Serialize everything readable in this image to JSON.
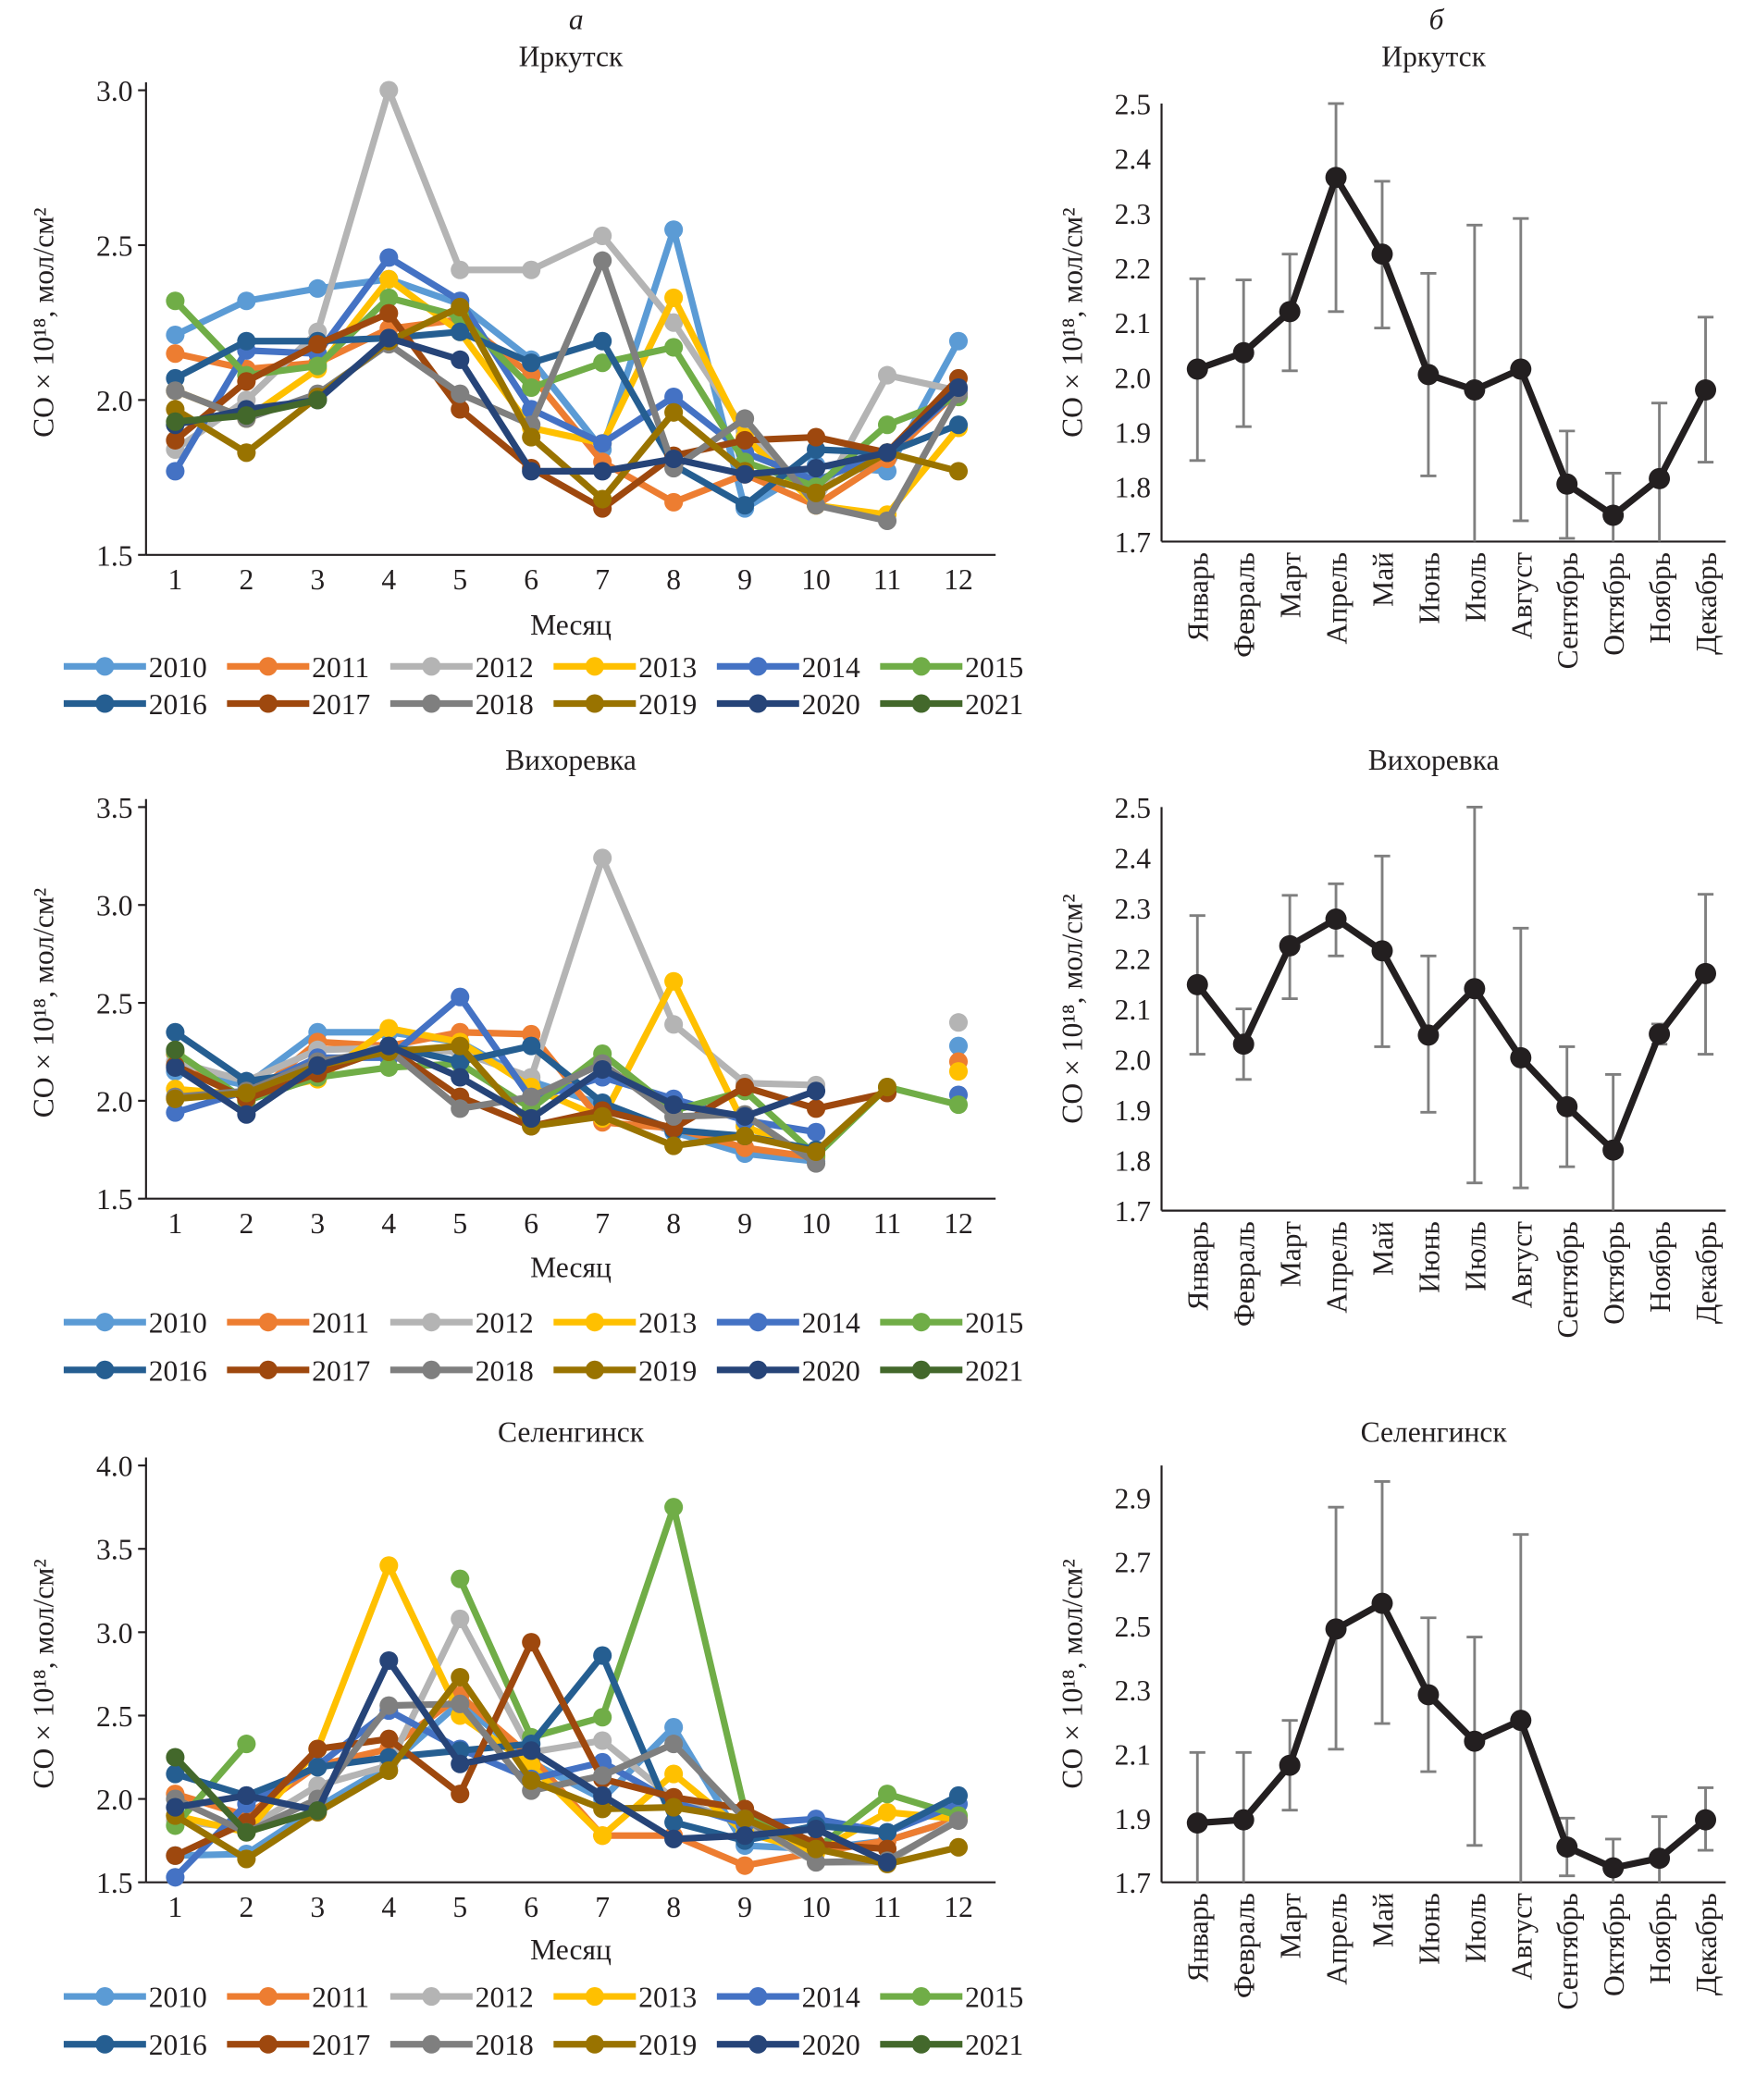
{
  "panel_labels": {
    "a": "а",
    "b": "б"
  },
  "legend_years": [
    "2010",
    "2011",
    "2012",
    "2013",
    "2014",
    "2015",
    "2016",
    "2017",
    "2018",
    "2019",
    "2020",
    "2021"
  ],
  "legend_colors": [
    "#5B9BD5",
    "#ED7D31",
    "#B4B4B4",
    "#FFC000",
    "#4472C4",
    "#70AD47",
    "#255E91",
    "#9E480E",
    "#7F7F7F",
    "#997300",
    "#264478",
    "#43682B"
  ],
  "chart_data": [
    {
      "type": "line",
      "panel": "а",
      "title": "Иркутск",
      "xlabel": "Месяц",
      "ylabel": "CO × 10^18, мол/см^2",
      "ylim": [
        1.5,
        3.0
      ],
      "yticks": [
        "1.5",
        "2.0",
        "2.5",
        "3.0"
      ],
      "x": [
        1,
        2,
        3,
        4,
        5,
        6,
        7,
        8,
        9,
        10,
        11,
        12
      ],
      "legend": "bottom",
      "series": [
        {
          "name": "2010",
          "values": [
            2.21,
            2.32,
            2.36,
            2.39,
            2.31,
            2.13,
            1.84,
            2.55,
            1.65,
            1.79,
            1.77,
            2.19
          ]
        },
        {
          "name": "2011",
          "values": [
            2.15,
            2.1,
            2.12,
            2.23,
            2.26,
            2.08,
            1.8,
            1.67,
            1.76,
            1.66,
            1.81,
            2.03
          ]
        },
        {
          "name": "2012",
          "values": [
            1.84,
            2.0,
            2.22,
            3.0,
            2.42,
            2.42,
            2.53,
            2.25,
            1.9,
            1.66,
            2.08,
            2.03
          ]
        },
        {
          "name": "2013",
          "values": [
            2.03,
            1.94,
            2.1,
            2.39,
            2.22,
            1.91,
            1.86,
            2.33,
            1.88,
            1.66,
            1.63,
            1.91
          ]
        },
        {
          "name": "2014",
          "values": [
            1.77,
            2.16,
            2.15,
            2.46,
            2.32,
            1.97,
            1.86,
            2.01,
            1.83,
            1.74,
            1.83,
            2.03
          ]
        },
        {
          "name": "2015",
          "values": [
            2.32,
            2.08,
            2.11,
            2.33,
            2.27,
            2.04,
            2.12,
            2.17,
            1.8,
            1.72,
            1.92,
            2.01
          ]
        },
        {
          "name": "2016",
          "values": [
            2.07,
            2.19,
            2.19,
            2.2,
            2.22,
            2.12,
            2.19,
            1.79,
            1.66,
            1.84,
            1.83,
            1.92
          ]
        },
        {
          "name": "2017",
          "values": [
            1.87,
            2.06,
            2.18,
            2.28,
            1.97,
            1.78,
            1.65,
            1.82,
            1.87,
            1.88,
            1.83,
            2.07
          ]
        },
        {
          "name": "2018",
          "values": [
            2.03,
            1.94,
            2.02,
            2.18,
            2.02,
            1.92,
            2.45,
            1.78,
            1.94,
            1.66,
            1.61,
            2.02
          ]
        },
        {
          "name": "2019",
          "values": [
            1.97,
            1.83,
            2.01,
            2.19,
            2.3,
            1.88,
            1.68,
            1.96,
            1.77,
            1.7,
            1.83,
            1.77
          ]
        },
        {
          "name": "2020",
          "values": [
            1.92,
            1.97,
            2.0,
            2.2,
            2.13,
            1.77,
            1.77,
            1.81,
            1.76,
            1.78,
            1.83,
            2.04
          ]
        },
        {
          "name": "2021",
          "values": [
            1.93,
            1.95,
            2.0,
            null,
            null,
            null,
            null,
            null,
            null,
            null,
            null,
            null
          ]
        }
      ]
    },
    {
      "type": "line",
      "panel": "б",
      "title": "Иркутск",
      "ylabel": "CO × 10^18, мол/см^2",
      "ylim": [
        1.7,
        2.5
      ],
      "yticks": [
        "1.7",
        "1.8",
        "1.9",
        "2.0",
        "2.1",
        "2.2",
        "2.3",
        "2.4",
        "2.5"
      ],
      "categories": [
        "Январь",
        "Февраль",
        "Март",
        "Апрель",
        "Май",
        "Июнь",
        "Июль",
        "Август",
        "Сентябрь",
        "Октябрь",
        "Ноябрь",
        "Декабрь"
      ],
      "values": [
        2.015,
        2.045,
        2.12,
        2.365,
        2.225,
        2.005,
        1.977,
        2.015,
        1.805,
        1.748,
        1.815,
        1.977
      ],
      "err_low": [
        1.848,
        1.91,
        2.012,
        2.12,
        2.09,
        1.82,
        1.7,
        1.738,
        1.706,
        1.7,
        1.7,
        1.845
      ],
      "err_high": [
        2.18,
        2.178,
        2.225,
        2.5,
        2.358,
        2.19,
        2.278,
        2.29,
        1.902,
        1.825,
        1.953,
        2.11
      ]
    },
    {
      "type": "line",
      "panel": "а",
      "title": "Вихоревка",
      "xlabel": "Месяц",
      "ylabel": "CO × 10^18, мол/см^2",
      "ylim": [
        1.5,
        3.5
      ],
      "yticks": [
        "1.5",
        "2.0",
        "2.5",
        "3.0",
        "3.5"
      ],
      "x": [
        1,
        2,
        3,
        4,
        5,
        6,
        7,
        8,
        9,
        10,
        11,
        12
      ],
      "legend": "bottom",
      "series": [
        {
          "name": "2010",
          "values": [
            2.15,
            2.08,
            2.35,
            2.35,
            2.3,
            2.1,
            1.98,
            1.84,
            1.73,
            1.69,
            null,
            2.28
          ]
        },
        {
          "name": "2011",
          "values": [
            2.24,
            2.0,
            2.3,
            2.28,
            2.35,
            2.34,
            1.89,
            1.86,
            1.76,
            1.71,
            null,
            2.2
          ]
        },
        {
          "name": "2012",
          "values": [
            2.2,
            2.1,
            2.26,
            2.27,
            2.25,
            2.12,
            3.24,
            2.39,
            2.09,
            2.08,
            null,
            2.4
          ]
        },
        {
          "name": "2013",
          "values": [
            2.06,
            2.03,
            2.11,
            2.37,
            2.3,
            2.07,
            1.91,
            2.61,
            1.87,
            1.72,
            null,
            2.15
          ]
        },
        {
          "name": "2014",
          "values": [
            1.94,
            2.05,
            2.22,
            2.22,
            2.53,
            2.01,
            2.12,
            2.01,
            1.9,
            1.84,
            null,
            2.03
          ]
        },
        {
          "name": "2015",
          "values": [
            2.25,
            2.0,
            2.12,
            2.17,
            2.19,
            1.96,
            2.24,
            1.95,
            2.05,
            1.72,
            2.07,
            1.98
          ]
        },
        {
          "name": "2016",
          "values": [
            2.35,
            2.1,
            2.15,
            2.28,
            2.2,
            2.28,
            1.99,
            1.85,
            1.82,
            1.75,
            null,
            null
          ]
        },
        {
          "name": "2017",
          "values": [
            2.18,
            2.01,
            2.14,
            2.27,
            2.02,
            1.87,
            1.95,
            1.86,
            2.07,
            1.96,
            2.04,
            null
          ]
        },
        {
          "name": "2018",
          "values": [
            2.02,
            2.05,
            2.2,
            2.26,
            1.96,
            2.02,
            2.19,
            1.92,
            1.93,
            1.68,
            null,
            null
          ]
        },
        {
          "name": "2019",
          "values": [
            2.01,
            2.04,
            2.18,
            2.25,
            2.28,
            1.87,
            1.92,
            1.77,
            1.82,
            1.74,
            2.07,
            null
          ]
        },
        {
          "name": "2020",
          "values": [
            2.17,
            1.93,
            2.18,
            2.28,
            2.12,
            1.91,
            2.16,
            1.98,
            1.92,
            2.05,
            null,
            null
          ]
        },
        {
          "name": "2021",
          "values": [
            2.26,
            null,
            null,
            null,
            null,
            null,
            null,
            null,
            null,
            null,
            null,
            null
          ]
        }
      ]
    },
    {
      "type": "line",
      "panel": "б",
      "title": "Вихоревка",
      "ylabel": "CO × 10^18, мол/см^2",
      "ylim": [
        1.7,
        2.5
      ],
      "yticks": [
        "1.7",
        "1.8",
        "1.9",
        "2.0",
        "2.1",
        "2.2",
        "2.3",
        "2.4",
        "2.5"
      ],
      "categories": [
        "Январь",
        "Февраль",
        "Март",
        "Апрель",
        "Май",
        "Июнь",
        "Июль",
        "Август",
        "Сентябрь",
        "Октябрь",
        "Ноябрь",
        "Декабрь"
      ],
      "values": [
        2.148,
        2.03,
        2.225,
        2.278,
        2.215,
        2.048,
        2.14,
        2.003,
        1.906,
        1.82,
        2.05,
        2.17
      ],
      "err_low": [
        2.01,
        1.96,
        2.12,
        2.205,
        2.025,
        1.895,
        1.755,
        1.745,
        1.787,
        1.7,
        2.03,
        2.01
      ],
      "err_high": [
        2.285,
        2.1,
        2.325,
        2.348,
        2.403,
        2.205,
        2.5,
        2.26,
        2.025,
        1.97,
        2.07,
        2.327
      ]
    },
    {
      "type": "line",
      "panel": "а",
      "title": "Селенгинск",
      "xlabel": "Месяц",
      "ylabel": "CO × 10^18, мол/см^2",
      "ylim": [
        1.5,
        4.0
      ],
      "yticks": [
        "1.5",
        "2.0",
        "2.5",
        "3.0",
        "3.5",
        "4.0"
      ],
      "x": [
        1,
        2,
        3,
        4,
        5,
        6,
        7,
        8,
        9,
        10,
        11,
        12
      ],
      "legend": "bottom",
      "series": [
        {
          "name": "2010",
          "values": [
            1.66,
            1.67,
            1.95,
            2.2,
            2.58,
            2.22,
            2.0,
            2.43,
            1.72,
            1.7,
            1.75,
            1.88
          ]
        },
        {
          "name": "2011",
          "values": [
            2.03,
            1.9,
            2.2,
            2.3,
            2.62,
            2.25,
            1.78,
            1.78,
            1.6,
            1.68,
            1.75,
            1.88
          ]
        },
        {
          "name": "2012",
          "values": [
            1.87,
            1.82,
            2.08,
            2.2,
            3.08,
            2.28,
            2.35,
            2.0,
            1.85,
            1.62,
            1.62,
            1.88
          ]
        },
        {
          "name": "2013",
          "values": [
            1.9,
            1.8,
            2.3,
            3.4,
            2.5,
            2.2,
            1.78,
            2.15,
            1.8,
            1.68,
            1.92,
            1.88
          ]
        },
        {
          "name": "2014",
          "values": [
            1.53,
            1.97,
            2.2,
            2.53,
            2.3,
            2.12,
            2.22,
            1.98,
            1.85,
            1.88,
            1.8,
            1.97
          ]
        },
        {
          "name": "2015",
          "values": [
            1.84,
            2.33,
            null,
            null,
            3.32,
            2.37,
            2.49,
            3.75,
            1.93,
            1.7,
            2.03,
            1.9
          ]
        },
        {
          "name": "2016",
          "values": [
            2.15,
            2.02,
            2.19,
            2.25,
            2.29,
            2.33,
            2.86,
            1.86,
            1.75,
            1.84,
            1.8,
            2.02
          ]
        },
        {
          "name": "2017",
          "values": [
            1.66,
            1.86,
            2.3,
            2.36,
            2.03,
            2.94,
            2.12,
            2.01,
            1.94,
            1.73,
            1.7,
            null
          ]
        },
        {
          "name": "2018",
          "values": [
            2.0,
            1.8,
            2.0,
            2.56,
            2.57,
            2.05,
            2.14,
            2.33,
            1.88,
            1.62,
            1.63,
            1.87
          ]
        },
        {
          "name": "2019",
          "values": [
            1.9,
            1.64,
            1.92,
            2.17,
            2.73,
            2.11,
            1.94,
            1.95,
            1.88,
            1.7,
            1.61,
            1.71
          ]
        },
        {
          "name": "2020",
          "values": [
            1.95,
            2.02,
            1.93,
            2.83,
            2.21,
            2.29,
            2.02,
            1.76,
            1.78,
            1.82,
            1.62,
            null
          ]
        },
        {
          "name": "2021",
          "values": [
            2.25,
            1.8,
            1.93,
            null,
            null,
            null,
            null,
            null,
            null,
            null,
            null,
            null
          ]
        }
      ]
    },
    {
      "type": "line",
      "panel": "б",
      "title": "Селенгинск",
      "ylabel": "CO × 10^18, мол/см^2",
      "ylim": [
        1.7,
        3.0
      ],
      "yticks": [
        "1.7",
        "1.9",
        "2.1",
        "2.3",
        "2.5",
        "2.7",
        "2.9"
      ],
      "categories": [
        "Январь",
        "Февраль",
        "Март",
        "Апрель",
        "Май",
        "Июнь",
        "Июль",
        "Август",
        "Сентябрь",
        "Октябрь",
        "Ноябрь",
        "Декабрь"
      ],
      "values": [
        1.885,
        1.895,
        2.065,
        2.49,
        2.57,
        2.285,
        2.14,
        2.205,
        1.81,
        1.745,
        1.775,
        1.895
      ],
      "err_low": [
        1.7,
        1.7,
        1.925,
        2.115,
        2.195,
        2.045,
        1.815,
        1.7,
        1.72,
        1.7,
        1.7,
        1.8
      ],
      "err_high": [
        2.105,
        2.105,
        2.205,
        2.87,
        2.95,
        2.525,
        2.465,
        2.785,
        1.9,
        1.835,
        1.905,
        1.995
      ]
    }
  ]
}
